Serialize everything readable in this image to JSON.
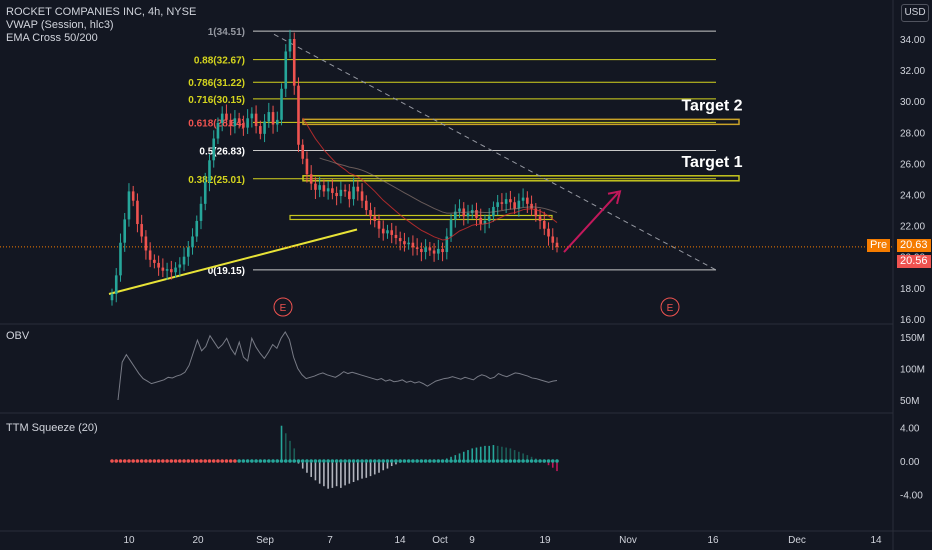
{
  "title": "ROCKET COMPANIES INC, 4h, NYSE",
  "currency": "USD",
  "indicators": [
    "VWAP (Session, hlc3)",
    "EMA Cross 50/200"
  ],
  "price_labels": {
    "pre_tag": "Pre",
    "pre_value": "20.63",
    "last_value": "20.56"
  },
  "colors": {
    "background": "#131722",
    "up": "#26a69a",
    "down": "#ef5350",
    "fib": "#d4d41e",
    "target_box": "#c9a227",
    "arrow": "#c2185b",
    "pre": "#f57c00",
    "last": "#ef5350"
  },
  "chart_data": [
    {
      "type": "line",
      "pane": "price",
      "y_ticks": [
        "34.00",
        "32.00",
        "30.00",
        "28.00",
        "26.00",
        "24.00",
        "22.00",
        "20.00",
        "18.00",
        "16.00"
      ],
      "x_ticks": [
        "10",
        "20",
        "Sep",
        "7",
        "14",
        "Oct",
        "9",
        "19",
        "Nov",
        "16",
        "Dec",
        "14"
      ],
      "ylim": [
        15.8,
        35.7
      ],
      "close": [
        17.6,
        18.8,
        20.9,
        22.4,
        24.2,
        23.6,
        22.1,
        21.3,
        20.4,
        19.8,
        19.6,
        19.3,
        19.1,
        19.2,
        19.0,
        19.3,
        19.5,
        20.0,
        20.6,
        21.3,
        22.3,
        23.4,
        24.8,
        26.2,
        27.6,
        28.6,
        29.2,
        28.8,
        28.4,
        28.9,
        28.6,
        28.3,
        28.9,
        29.2,
        28.4,
        27.9,
        28.7,
        29.3,
        28.5,
        28.8,
        30.8,
        33.2,
        34.0,
        31.0,
        27.2,
        26.3,
        25.3,
        24.7,
        24.3,
        24.6,
        24.2,
        24.4,
        24.1,
        23.9,
        24.3,
        24.2,
        23.7,
        24.5,
        24.2,
        23.6,
        23.0,
        22.6,
        22.3,
        21.8,
        21.5,
        21.7,
        21.4,
        21.2,
        21.0,
        20.8,
        20.9,
        20.6,
        20.5,
        20.3,
        20.6,
        20.4,
        20.2,
        20.5,
        20.3,
        21.3,
        22.4,
        22.9,
        23.1,
        22.6,
        22.8,
        23.0,
        22.5,
        22.1,
        22.3,
        22.6,
        23.2,
        23.5,
        23.4,
        23.7,
        23.5,
        23.1,
        23.6,
        23.8,
        23.4,
        23.1,
        22.6,
        22.3,
        21.8,
        21.3,
        20.9,
        20.63
      ],
      "fib_levels": [
        {
          "label": "1(34.51)",
          "value": 34.51
        },
        {
          "label": "0.88(32.67)",
          "value": 32.67
        },
        {
          "label": "0.786(31.22)",
          "value": 31.22
        },
        {
          "label": "0.716(30.15)",
          "value": 30.15
        },
        {
          "label": "0.618(28.64)",
          "value": 28.64
        },
        {
          "label": "0.5(26.83)",
          "value": 26.83
        },
        {
          "label": "0.382(25.01)",
          "value": 25.01
        },
        {
          "label": "0(19.15)",
          "value": 19.15
        }
      ],
      "targets": [
        {
          "label": "Target 2",
          "value": 28.64
        },
        {
          "label": "Target 1",
          "value": 25.01
        }
      ],
      "earnings_marker": "E"
    },
    {
      "type": "line",
      "pane": "OBV",
      "title": "OBV",
      "y_ticks": [
        "150M",
        "100M",
        "50M"
      ],
      "values": [
        50,
        110,
        122,
        112,
        102,
        92,
        84,
        80,
        76,
        78,
        80,
        82,
        86,
        85,
        88,
        90,
        94,
        105,
        125,
        145,
        128,
        135,
        152,
        142,
        132,
        138,
        148,
        132,
        122,
        142,
        118,
        112,
        148,
        134,
        124,
        116,
        126,
        138,
        132,
        148,
        158,
        146,
        118,
        100,
        90,
        84,
        86,
        88,
        91,
        93,
        90,
        88,
        86,
        90,
        95,
        92,
        94,
        92,
        90,
        88,
        86,
        84,
        82,
        84,
        80,
        82,
        79,
        80,
        82,
        78,
        80,
        77,
        79,
        76,
        72,
        76,
        80,
        82,
        84,
        85,
        87,
        85,
        83,
        86,
        84,
        82,
        87,
        90,
        88,
        84,
        86,
        92,
        89,
        87,
        90,
        93,
        92,
        90,
        88,
        85,
        84,
        82,
        80,
        78,
        80,
        81
      ],
      "ylim": [
        40,
        180
      ]
    },
    {
      "type": "bar",
      "pane": "TTM Squeeze",
      "title": "TTM Squeeze (20)",
      "y_ticks": [
        "4.00",
        "0.00",
        "-4.00"
      ],
      "ylim": [
        -6,
        5
      ],
      "values": [
        0,
        0,
        0,
        0,
        0,
        0,
        0,
        0,
        0,
        0,
        0,
        0,
        0,
        0,
        0,
        0,
        0,
        0,
        0,
        0,
        0,
        0,
        0,
        0,
        0,
        0,
        0,
        0,
        0,
        0,
        0,
        0,
        0,
        0,
        0,
        0,
        0,
        0,
        0,
        0,
        4.2,
        3.3,
        2.4,
        1.5,
        -0.3,
        -0.9,
        -1.4,
        -1.9,
        -2.3,
        -2.7,
        -3.0,
        -3.3,
        -3.2,
        -3.0,
        -3.2,
        -2.9,
        -2.7,
        -2.5,
        -2.3,
        -2.1,
        -2.0,
        -1.8,
        -1.6,
        -1.4,
        -1.1,
        -0.9,
        -0.6,
        -0.4,
        -0.2,
        0,
        0,
        0,
        0,
        0,
        0,
        0,
        0,
        0,
        0.1,
        0.3,
        0.5,
        0.7,
        0.9,
        1.1,
        1.3,
        1.5,
        1.6,
        1.7,
        1.8,
        1.8,
        1.9,
        1.8,
        1.7,
        1.6,
        1.5,
        1.3,
        1.1,
        0.9,
        0.7,
        0.5,
        0.3,
        0.1,
        -0.2,
        -0.5,
        -0.8,
        -1.2
      ]
    }
  ]
}
